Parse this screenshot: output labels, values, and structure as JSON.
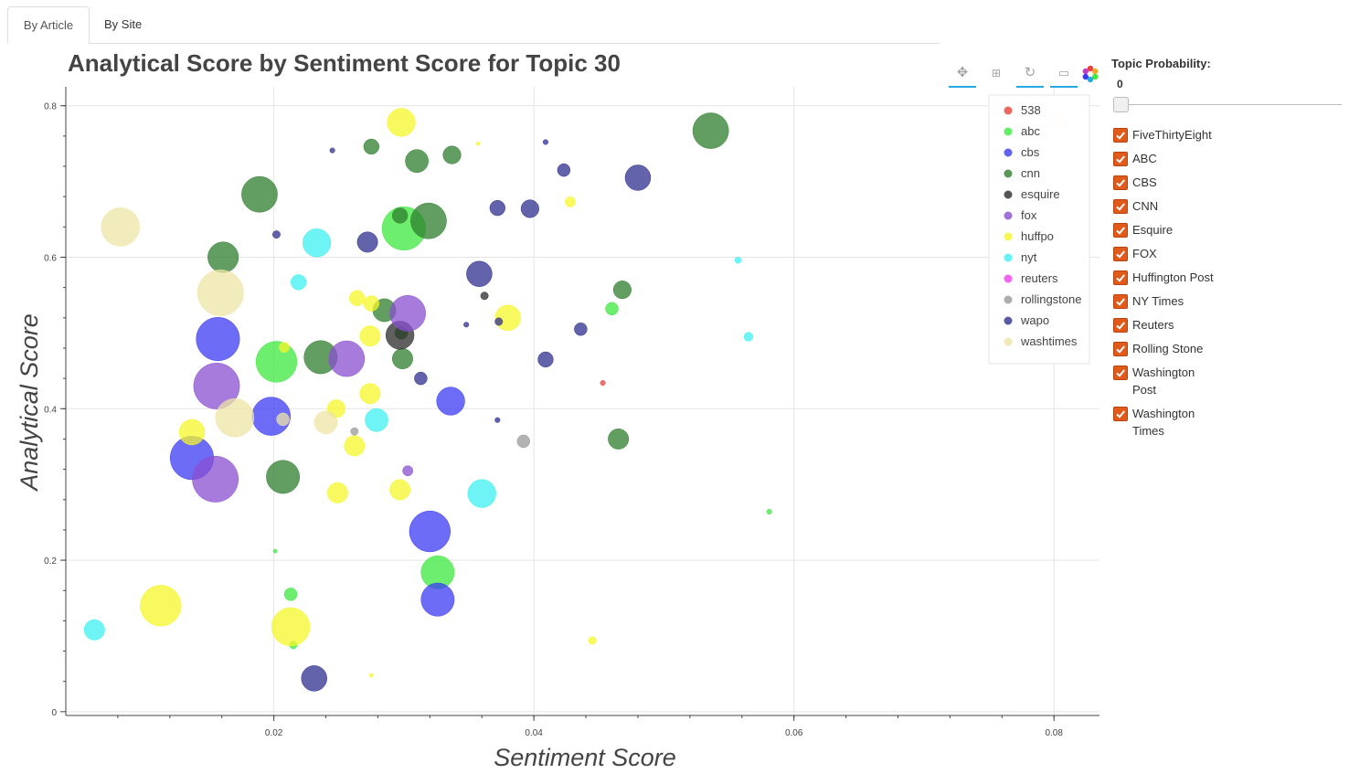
{
  "tabs": [
    {
      "label": "By Article"
    },
    {
      "label": "By Site"
    }
  ],
  "sidebar": {
    "title": "Topic Probability:",
    "slider_value": "0",
    "checkboxes": [
      {
        "label": "FiveThirtyEight",
        "checked": true
      },
      {
        "label": "ABC",
        "checked": true
      },
      {
        "label": "CBS",
        "checked": true
      },
      {
        "label": "CNN",
        "checked": true
      },
      {
        "label": "Esquire",
        "checked": true
      },
      {
        "label": "FOX",
        "checked": true
      },
      {
        "label": "Huffington Post",
        "checked": true
      },
      {
        "label": "NY Times",
        "checked": true
      },
      {
        "label": "Reuters",
        "checked": true
      },
      {
        "label": "Rolling Stone",
        "checked": true
      },
      {
        "label": "Washington Post",
        "checked": true
      },
      {
        "label": "Washington Times",
        "checked": true
      }
    ]
  },
  "toolbar": {
    "tools": [
      {
        "icon": "pan-icon"
      },
      {
        "icon": "box-zoom-icon"
      },
      {
        "icon": "reset-icon"
      },
      {
        "icon": "hover-icon"
      },
      {
        "icon": "bokeh-logo-icon"
      }
    ]
  },
  "chart_data": {
    "type": "scatter",
    "title": "Analytical Score by Sentiment Score for Topic 30",
    "xlabel": "Sentiment Score",
    "ylabel": "Analytical Score",
    "xlim": [
      0.004,
      0.0835
    ],
    "ylim": [
      -0.005,
      0.825
    ],
    "xticks": [
      "0.02",
      "0.04",
      "0.06",
      "0.08"
    ],
    "xtick_values": [
      0.02,
      0.04,
      0.06,
      0.08
    ],
    "yticks": [
      "0",
      "0.2",
      "0.4",
      "0.6",
      "0.8"
    ],
    "ytick_values": [
      0,
      0.2,
      0.4,
      0.6,
      0.8
    ],
    "grid": true,
    "legend_position": "top-right",
    "colors": {
      "538": "#e8413a",
      "abc": "#3ee83e",
      "cbs": "#3b3bf4",
      "cnn": "#2e7d2e",
      "esquire": "#2b2b2b",
      "fox": "#8a4fd0",
      "huffpo": "#f6f62a",
      "nyt": "#3ff0f2",
      "reuters": "#f03ff0",
      "rollingstone": "#9a9a9a",
      "wapo": "#2f2f8f",
      "washtimes": "#eee4a6"
    },
    "series": [
      {
        "name": "538",
        "points": [
          [
            0.0453,
            0.434,
            0.2
          ]
        ]
      },
      {
        "name": "abc",
        "points": [
          [
            0.03,
            0.638,
            1.7
          ],
          [
            0.0202,
            0.462,
            1.6
          ],
          [
            0.0326,
            0.184,
            1.3
          ],
          [
            0.0213,
            0.155,
            0.5
          ],
          [
            0.046,
            0.532,
            0.5
          ],
          [
            0.0581,
            0.264,
            0.2
          ],
          [
            0.0201,
            0.212,
            0.15
          ],
          [
            0.0215,
            0.088,
            0.3
          ]
        ]
      },
      {
        "name": "cbs",
        "points": [
          [
            0.0157,
            0.492,
            1.7
          ],
          [
            0.0198,
            0.39,
            1.5
          ],
          [
            0.0137,
            0.335,
            1.7
          ],
          [
            0.032,
            0.238,
            1.6
          ],
          [
            0.0326,
            0.148,
            1.3
          ],
          [
            0.0336,
            0.41,
            1.1
          ]
        ]
      },
      {
        "name": "cnn",
        "points": [
          [
            0.0536,
            0.767,
            1.4
          ],
          [
            0.0189,
            0.683,
            1.4
          ],
          [
            0.0319,
            0.648,
            1.4
          ],
          [
            0.0161,
            0.6,
            1.2
          ],
          [
            0.0236,
            0.468,
            1.3
          ],
          [
            0.0207,
            0.31,
            1.3
          ],
          [
            0.031,
            0.727,
            0.9
          ],
          [
            0.0275,
            0.746,
            0.6
          ],
          [
            0.0337,
            0.735,
            0.7
          ],
          [
            0.0297,
            0.655,
            0.6
          ],
          [
            0.0468,
            0.557,
            0.7
          ],
          [
            0.0285,
            0.53,
            0.9
          ],
          [
            0.0299,
            0.466,
            0.8
          ],
          [
            0.0465,
            0.36,
            0.8
          ],
          [
            0.0298,
            0.5,
            0.5
          ]
        ]
      },
      {
        "name": "esquire",
        "points": [
          [
            0.0297,
            0.497,
            1.1
          ],
          [
            0.0362,
            0.549,
            0.3
          ]
        ]
      },
      {
        "name": "fox",
        "points": [
          [
            0.0156,
            0.43,
            1.8
          ],
          [
            0.0155,
            0.307,
            1.8
          ],
          [
            0.0256,
            0.466,
            1.4
          ],
          [
            0.0303,
            0.526,
            1.4
          ],
          [
            0.0303,
            0.318,
            0.4
          ]
        ]
      },
      {
        "name": "huffpo",
        "points": [
          [
            0.0298,
            0.778,
            1.1
          ],
          [
            0.0113,
            0.14,
            1.6
          ],
          [
            0.0213,
            0.112,
            1.5
          ],
          [
            0.0137,
            0.369,
            1.0
          ],
          [
            0.038,
            0.52,
            1.0
          ],
          [
            0.0264,
            0.546,
            0.6
          ],
          [
            0.0275,
            0.539,
            0.6
          ],
          [
            0.0274,
            0.496,
            0.8
          ],
          [
            0.0274,
            0.42,
            0.8
          ],
          [
            0.0262,
            0.351,
            0.8
          ],
          [
            0.0249,
            0.289,
            0.8
          ],
          [
            0.0297,
            0.293,
            0.8
          ],
          [
            0.0248,
            0.4,
            0.7
          ],
          [
            0.0428,
            0.673,
            0.4
          ],
          [
            0.0445,
            0.094,
            0.3
          ],
          [
            0.0208,
            0.481,
            0.4
          ],
          [
            0.0275,
            0.048,
            0.15
          ],
          [
            0.0357,
            0.75,
            0.15
          ]
        ]
      },
      {
        "name": "nyt",
        "points": [
          [
            0.0233,
            0.619,
            1.1
          ],
          [
            0.036,
            0.288,
            1.1
          ],
          [
            0.0279,
            0.385,
            0.9
          ],
          [
            0.0219,
            0.567,
            0.6
          ],
          [
            0.0062,
            0.108,
            0.8
          ],
          [
            0.0565,
            0.495,
            0.35
          ],
          [
            0.0557,
            0.596,
            0.25
          ]
        ]
      },
      {
        "name": "reuters",
        "points": []
      },
      {
        "name": "rollingstone",
        "points": [
          [
            0.0392,
            0.357,
            0.5
          ],
          [
            0.0262,
            0.37,
            0.3
          ]
        ]
      },
      {
        "name": "wapo",
        "points": [
          [
            0.048,
            0.705,
            1.0
          ],
          [
            0.0358,
            0.578,
            1.0
          ],
          [
            0.0397,
            0.664,
            0.7
          ],
          [
            0.0372,
            0.665,
            0.6
          ],
          [
            0.0272,
            0.62,
            0.8
          ],
          [
            0.0423,
            0.715,
            0.5
          ],
          [
            0.0436,
            0.505,
            0.5
          ],
          [
            0.0409,
            0.465,
            0.6
          ],
          [
            0.0313,
            0.44,
            0.5
          ],
          [
            0.0231,
            0.044,
            1.0
          ],
          [
            0.0202,
            0.63,
            0.3
          ],
          [
            0.0245,
            0.741,
            0.2
          ],
          [
            0.0409,
            0.752,
            0.2
          ],
          [
            0.0373,
            0.515,
            0.3
          ],
          [
            0.0372,
            0.385,
            0.2
          ],
          [
            0.0348,
            0.511,
            0.2
          ]
        ]
      },
      {
        "name": "washtimes",
        "points": [
          [
            0.0082,
            0.64,
            1.5
          ],
          [
            0.0159,
            0.553,
            1.8
          ],
          [
            0.017,
            0.388,
            1.5
          ],
          [
            0.024,
            0.382,
            0.9
          ],
          [
            0.0207,
            0.386,
            0.5
          ],
          [
            0.0803,
            0.782,
            0.7
          ]
        ]
      }
    ],
    "legend": [
      {
        "name": "538"
      },
      {
        "name": "abc"
      },
      {
        "name": "cbs"
      },
      {
        "name": "cnn"
      },
      {
        "name": "esquire"
      },
      {
        "name": "fox"
      },
      {
        "name": "huffpo"
      },
      {
        "name": "nyt"
      },
      {
        "name": "reuters"
      },
      {
        "name": "rollingstone"
      },
      {
        "name": "wapo"
      },
      {
        "name": "washtimes"
      }
    ]
  }
}
